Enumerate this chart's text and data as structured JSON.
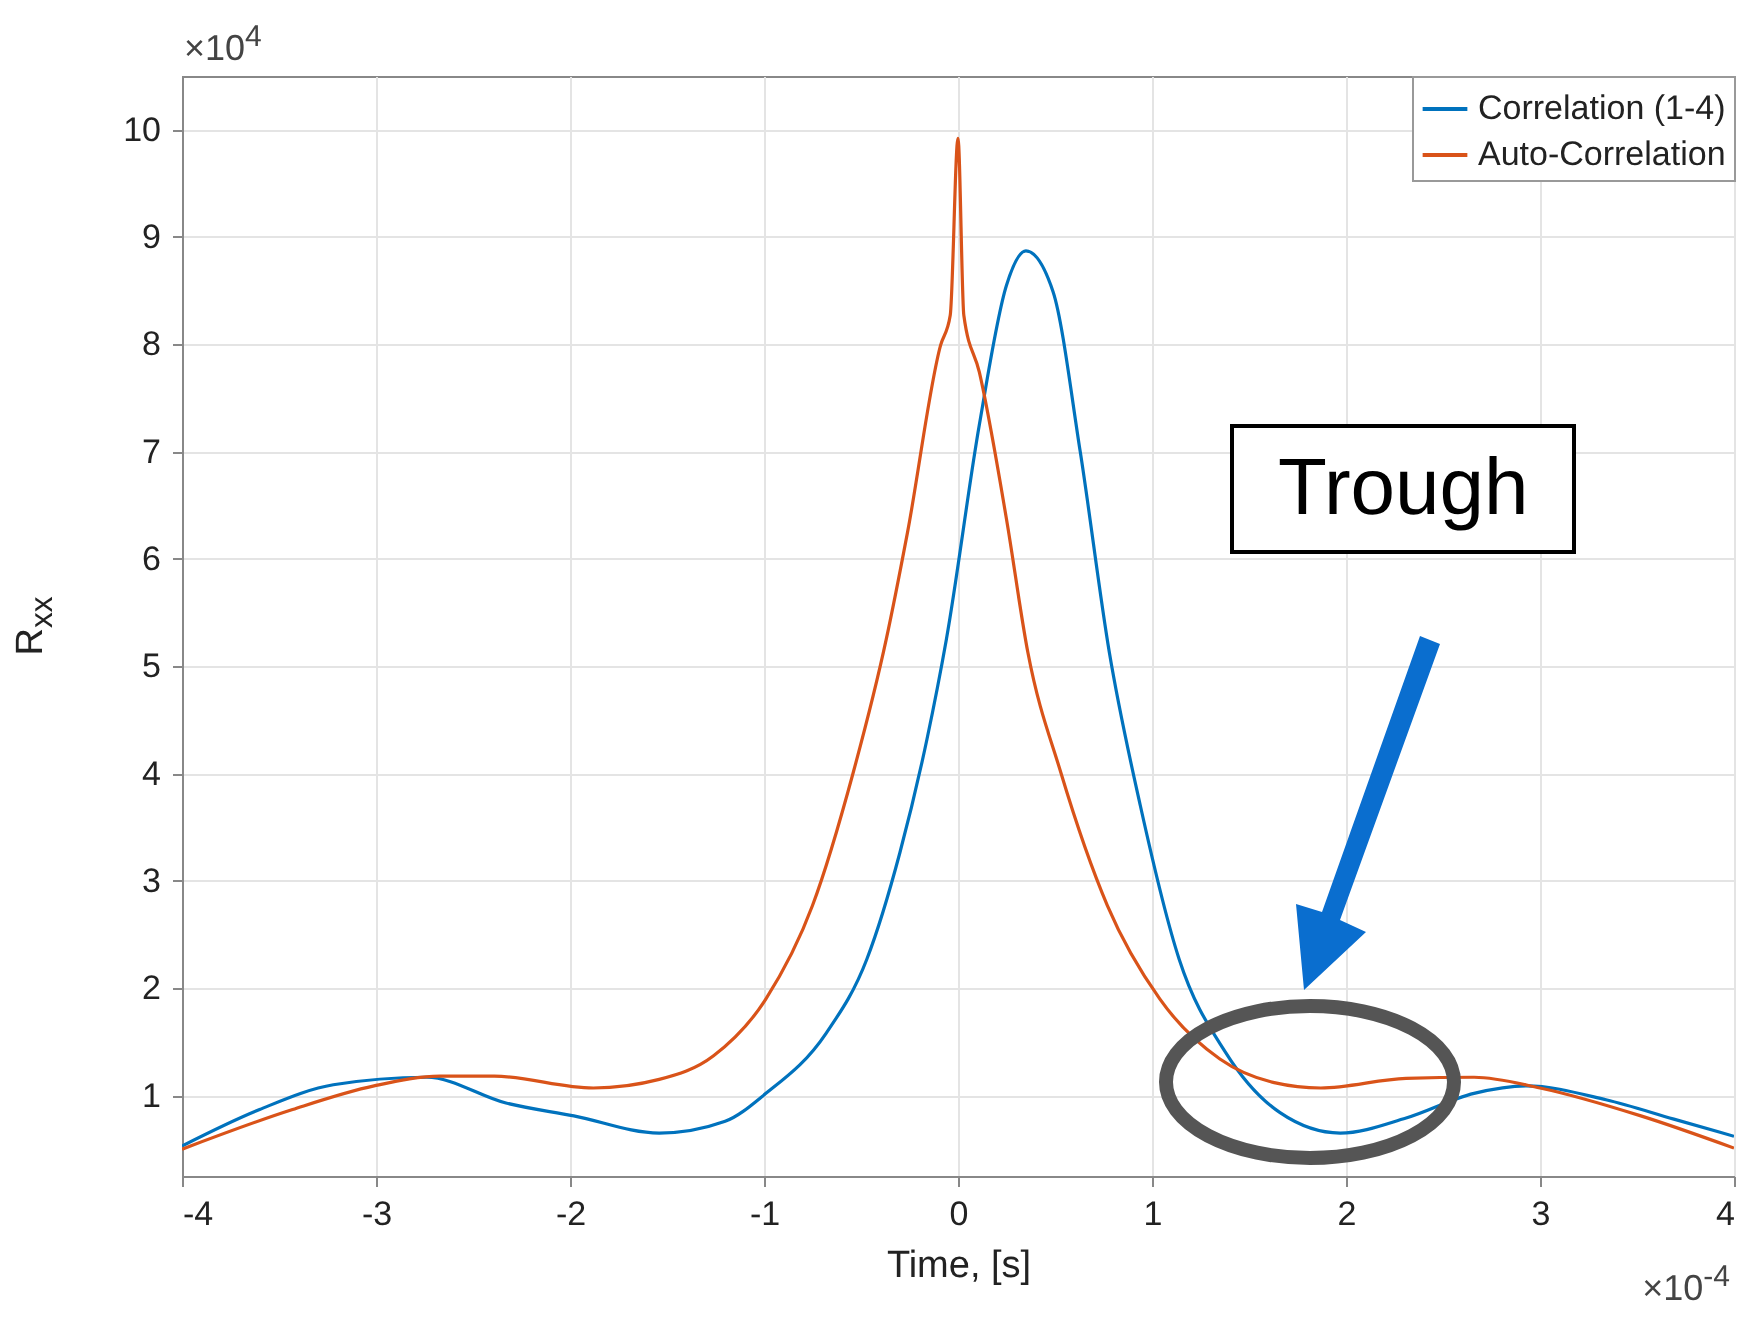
{
  "chart_data": {
    "type": "line",
    "xlabel": "Time, [s]",
    "ylabel": "R$_{xx}$",
    "annotations": [
      "×10$^{4}$",
      "×10$^{-4}$",
      "Trough"
    ],
    "xlim": [
      -4,
      4
    ],
    "xticks": [
      -4,
      -3,
      -2,
      -1,
      0,
      1,
      2,
      3,
      4
    ],
    "ylim": [
      0.25,
      10.5
    ],
    "yticks": [
      1,
      2,
      3,
      4,
      5,
      6,
      7,
      8,
      9,
      10
    ],
    "grid": true,
    "legend": "top right",
    "line_style": "solid",
    "series": [
      {
        "name": "Correlation (1-4)",
        "color": "#0072bd",
        "x": [
          -4,
          -3.6,
          -3.22,
          -2.74,
          -2.33,
          -1.98,
          -1.54,
          -1.2,
          -0.99,
          -0.68,
          -0.47,
          -0.3,
          -0.16,
          -0.06,
          0.11,
          0.25,
          0.35,
          0.49,
          0.63,
          0.78,
          0.94,
          1.14,
          1.38,
          1.66,
          1.97,
          2.31,
          2.66,
          2.93,
          3.34,
          3.69,
          4
        ],
        "values": [
          0.53,
          0.87,
          1.1,
          1.17,
          0.93,
          0.81,
          0.65,
          0.76,
          1.02,
          1.58,
          2.27,
          3.26,
          4.32,
          5.25,
          7.25,
          8.55,
          8.87,
          8.49,
          7.0,
          5.13,
          3.7,
          2.27,
          1.4,
          0.84,
          0.65,
          0.79,
          1.02,
          1.09,
          0.96,
          0.78,
          0.62
        ]
      },
      {
        "name": "Auto-Correlation",
        "color": "#d95319",
        "x": [
          -4,
          -3.43,
          -3.01,
          -2.67,
          -2.39,
          -1.88,
          -1.54,
          -1.26,
          -0.99,
          -0.75,
          -0.54,
          -0.37,
          -0.26,
          -0.09,
          -0.04,
          0,
          0.03,
          0.11,
          0.25,
          0.36,
          0.53,
          0.77,
          1.04,
          1.35,
          1.63,
          1.87,
          2.31,
          2.66,
          3.0,
          3.52,
          4
        ],
        "values": [
          0.5,
          0.87,
          1.09,
          1.18,
          1.18,
          1.07,
          1.15,
          1.37,
          1.9,
          2.77,
          4.01,
          5.25,
          6.25,
          7.99,
          8.27,
          9.92,
          8.27,
          7.74,
          6.37,
          5.13,
          4.01,
          2.77,
          1.9,
          1.34,
          1.12,
          1.07,
          1.16,
          1.17,
          1.07,
          0.81,
          0.51
        ]
      }
    ]
  }
}
